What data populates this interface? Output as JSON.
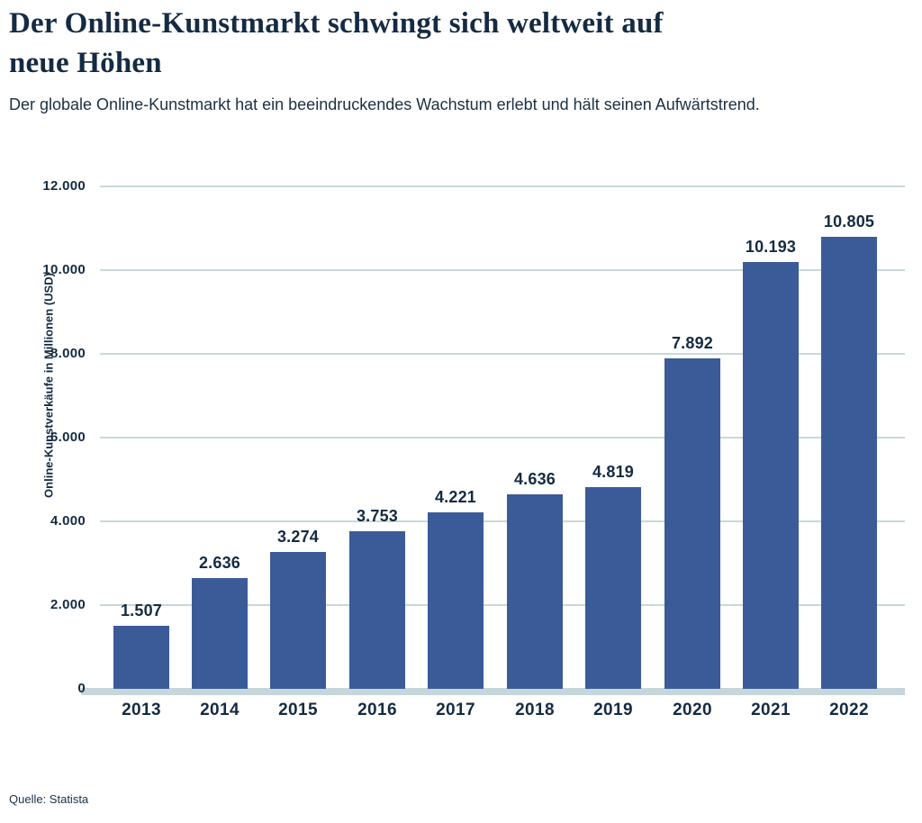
{
  "header": {
    "title": "Der Online-Kunstmarkt schwingt sich weltweit auf neue Höhen",
    "title_lines": [
      "Der Online-Kunstmarkt schwingt sich weltweit auf",
      "neue Höhen"
    ],
    "subtitle": "Der globale Online-Kunstmarkt hat ein beeindruckendes Wachstum erlebt und hält seinen Aufwärtstrend."
  },
  "footer": {
    "source": "Quelle: Statista"
  },
  "chart_data": {
    "type": "bar",
    "title": "Der Online-Kunstmarkt schwingt sich weltweit auf neue Höhen",
    "subtitle": "Der globale Online-Kunstmarkt hat ein beeindruckendes Wachstum erlebt und hält seinen Aufwärtstrend.",
    "xlabel": "",
    "ylabel": "Online-Kunstverkäufe in Millionen (USD)",
    "categories": [
      "2013",
      "2014",
      "2015",
      "2016",
      "2017",
      "2018",
      "2019",
      "2020",
      "2021",
      "2022"
    ],
    "values": [
      1507,
      2636,
      3274,
      3753,
      4221,
      4636,
      4819,
      7892,
      10193,
      10805
    ],
    "value_labels": [
      "1.507",
      "2.636",
      "3.274",
      "3.753",
      "4.221",
      "4.636",
      "4.819",
      "7.892",
      "10.193",
      "10.805"
    ],
    "ylim": [
      0,
      12000
    ],
    "yticks": [
      {
        "value": 0,
        "label": "0"
      },
      {
        "value": 2000,
        "label": "2.000"
      },
      {
        "value": 4000,
        "label": "4.000"
      },
      {
        "value": 6000,
        "label": "6.000"
      },
      {
        "value": 8000,
        "label": "8.000"
      },
      {
        "value": 10000,
        "label": "10.000"
      },
      {
        "value": 12000,
        "label": "12.000"
      }
    ],
    "grid": true,
    "legend": "none",
    "source": "Quelle: Statista",
    "colors": {
      "bar": "#3A5B97",
      "grid": "#C8D8DA",
      "baseline": "#C6D6DA",
      "text": "#142B42"
    }
  }
}
